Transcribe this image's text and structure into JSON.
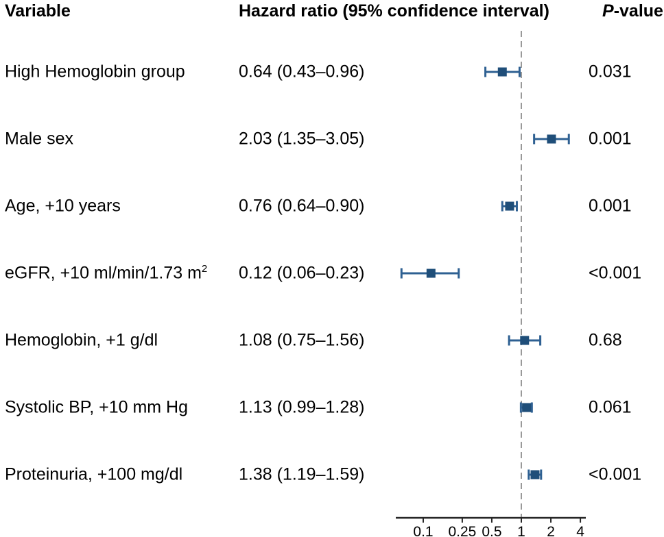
{
  "header": {
    "variable": "Variable",
    "hazard_ratio": "Hazard ratio (95% confidence interval)",
    "p_italic": "P",
    "p_rest": "-value"
  },
  "chart_data": {
    "type": "scatter",
    "subtype": "forest-plot",
    "x_scale": "log",
    "xlim": [
      0.052,
      4.55
    ],
    "x_ticks": [
      0.1,
      0.25,
      0.5,
      1,
      2,
      4
    ],
    "x_tick_labels": [
      "0.1",
      "0.25",
      "0.5",
      "1",
      "2",
      "4"
    ],
    "reference_line": 1,
    "grid": false,
    "legend": "none",
    "colors": {
      "marker": "#1f4e79",
      "whisker": "#2e6092",
      "axis": "#262626",
      "reference_line": "#999999"
    },
    "rows": [
      {
        "label": "High Hemoglobin group",
        "hr_text": "0.64 (0.43–0.96)",
        "hr": 0.64,
        "lo": 0.43,
        "hi": 0.96,
        "p": "0.031"
      },
      {
        "label": "Male sex",
        "hr_text": "2.03 (1.35–3.05)",
        "hr": 2.03,
        "lo": 1.35,
        "hi": 3.05,
        "p": "0.001"
      },
      {
        "label": "Age, +10 years",
        "hr_text": "0.76 (0.64–0.90)",
        "hr": 0.76,
        "lo": 0.64,
        "hi": 0.9,
        "p": "0.001"
      },
      {
        "label": "eGFR, +10 ml/min/1.73 m",
        "label_sup": "2",
        "hr_text": "0.12 (0.06–0.23)",
        "hr": 0.12,
        "lo": 0.06,
        "hi": 0.23,
        "p": "<0.001"
      },
      {
        "label": "Hemoglobin, +1 g/dl",
        "hr_text": "1.08 (0.75–1.56)",
        "hr": 1.08,
        "lo": 0.75,
        "hi": 1.56,
        "p": "0.68"
      },
      {
        "label": "Systolic BP, +10 mm Hg",
        "hr_text": "1.13 (0.99–1.28)",
        "hr": 1.13,
        "lo": 0.99,
        "hi": 1.28,
        "p": "0.061"
      },
      {
        "label": "Proteinuria, +100 mg/dl",
        "hr_text": "1.38 (1.19–1.59)",
        "hr": 1.38,
        "lo": 1.19,
        "hi": 1.59,
        "p": "<0.001"
      }
    ]
  }
}
